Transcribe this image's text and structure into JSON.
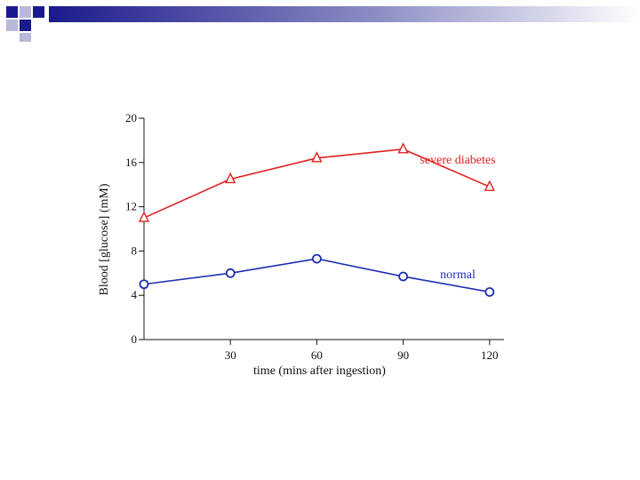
{
  "chart_data": {
    "type": "line",
    "title": "",
    "xlabel": "time (mins after ingestion)",
    "ylabel": "Blood [glucose] (mM)",
    "x": [
      0,
      30,
      60,
      90,
      120
    ],
    "xticks": [
      30,
      60,
      90,
      120
    ],
    "yticks": [
      0,
      4,
      8,
      12,
      16,
      20
    ],
    "xlim": [
      0,
      125
    ],
    "ylim": [
      0,
      20
    ],
    "grid": false,
    "series": [
      {
        "name": "severe diabetes",
        "values": [
          11.0,
          14.5,
          16.4,
          17.2,
          13.8
        ],
        "color": "#e02020",
        "marker": "triangle"
      },
      {
        "name": "normal",
        "values": [
          5.0,
          6.0,
          7.3,
          5.7,
          4.3
        ],
        "color": "#1f2fb0",
        "marker": "circle"
      }
    ]
  },
  "decoration": {
    "accent_color": "#1a1a8c",
    "bar_start_color": "#1a1a8c",
    "bar_end_color": "#ffffff"
  }
}
